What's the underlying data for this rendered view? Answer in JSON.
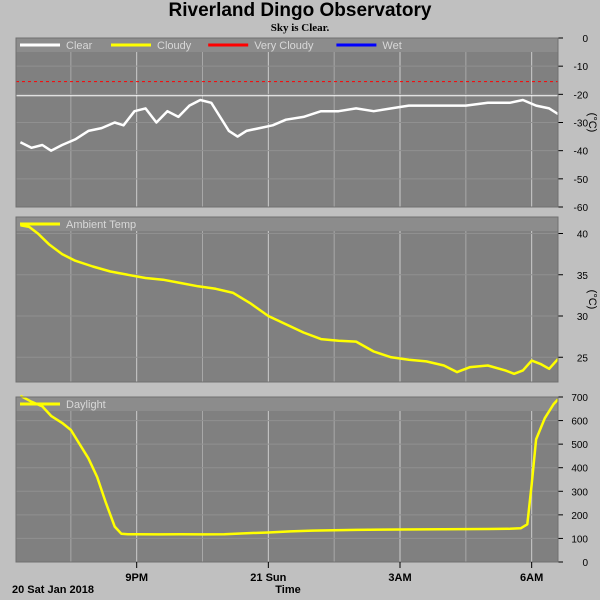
{
  "title": "Riverland Dingo Observatory",
  "subtitle": "Sky is Clear.",
  "colors": {
    "plot_bg": "#808080",
    "page_bg": "#c0c0c0",
    "grid": "#ffffff",
    "clear": "#ffffff",
    "cloudy": "#ffff00",
    "very_cloudy": "#ff0000",
    "wet": "#0000ff",
    "temp": "#ffff00",
    "daylight": "#ffff00"
  },
  "xaxis": {
    "title": "Time",
    "start_label": "20 Sat Jan 2018",
    "range_hours": [
      18.25,
      30.6
    ],
    "ticks": [
      {
        "hour": 21,
        "label": "9PM"
      },
      {
        "hour": 24,
        "label": "21 Sun"
      },
      {
        "hour": 27,
        "label": "3AM"
      },
      {
        "hour": 30,
        "label": "6AM"
      }
    ],
    "minor_grid_hours": [
      19.5,
      22.5,
      25.5,
      28.5
    ]
  },
  "chart_data": [
    {
      "type": "line",
      "title": "",
      "ylabel": "(°C)",
      "ylim": [
        -60,
        0
      ],
      "yticks": [
        0,
        -10,
        -20,
        -30,
        -40,
        -50,
        -60
      ],
      "legend": [
        {
          "name": "Clear",
          "color": "#ffffff"
        },
        {
          "name": "Cloudy",
          "color": "#ffff00"
        },
        {
          "name": "Very Cloudy",
          "color": "#ff0000"
        },
        {
          "name": "Wet",
          "color": "#0000ff"
        }
      ],
      "thresholds": [
        {
          "value": -15.5,
          "color": "#ff0000",
          "style": "dashed"
        },
        {
          "value": -20.5,
          "color": "#ffffff",
          "style": "solid"
        }
      ],
      "series": [
        {
          "name": "Clear",
          "color": "#ffffff",
          "x": [
            18.35,
            18.6,
            18.85,
            19.05,
            19.3,
            19.6,
            19.9,
            20.2,
            20.5,
            20.7,
            20.95,
            21.2,
            21.45,
            21.7,
            21.95,
            22.2,
            22.45,
            22.7,
            22.9,
            23.1,
            23.3,
            23.5,
            23.8,
            24.1,
            24.4,
            24.8,
            25.2,
            25.6,
            26.0,
            26.4,
            26.8,
            27.2,
            27.6,
            28.0,
            28.5,
            29.0,
            29.5,
            29.8,
            30.1,
            30.4,
            30.6
          ],
          "y": [
            -37,
            -39,
            -38,
            -40,
            -38,
            -36,
            -33,
            -32,
            -30,
            -31,
            -26,
            -25,
            -30,
            -26,
            -28,
            -24,
            -22,
            -23,
            -28,
            -33,
            -35,
            -33,
            -32,
            -31,
            -29,
            -28,
            -26,
            -26,
            -25,
            -26,
            -25,
            -24,
            -24,
            -24,
            -24,
            -23,
            -23,
            -22,
            -24,
            -25,
            -27
          ]
        }
      ]
    },
    {
      "type": "line",
      "title": "",
      "ylabel": "(°C)",
      "ylim": [
        22,
        42
      ],
      "yticks": [
        40,
        35,
        30,
        25
      ],
      "legend": [
        {
          "name": "Ambient Temp",
          "color": "#ffff00"
        }
      ],
      "series": [
        {
          "name": "Ambient Temp",
          "color": "#ffff00",
          "x": [
            18.35,
            18.55,
            18.75,
            19.0,
            19.3,
            19.6,
            20.0,
            20.4,
            20.8,
            21.2,
            21.6,
            22.0,
            22.4,
            22.8,
            23.2,
            23.6,
            24.0,
            24.4,
            24.8,
            25.2,
            25.6,
            26.0,
            26.4,
            26.8,
            27.2,
            27.6,
            28.0,
            28.3,
            28.6,
            29.0,
            29.4,
            29.6,
            29.8,
            30.0,
            30.2,
            30.4,
            30.6
          ],
          "y": [
            41,
            40.8,
            40,
            38.7,
            37.5,
            36.7,
            36.0,
            35.4,
            35.0,
            34.6,
            34.4,
            34.0,
            33.6,
            33.3,
            32.8,
            31.5,
            30.0,
            29.0,
            28.0,
            27.2,
            27.0,
            26.9,
            25.7,
            25.0,
            24.7,
            24.5,
            24.0,
            23.2,
            23.8,
            24.0,
            23.4,
            23.0,
            23.4,
            24.6,
            24.2,
            23.6,
            24.8
          ]
        }
      ]
    },
    {
      "type": "line",
      "title": "",
      "ylabel": "",
      "ylim": [
        0,
        700
      ],
      "yticks": [
        700,
        600,
        500,
        400,
        300,
        200,
        100,
        0
      ],
      "legend": [
        {
          "name": "Daylight",
          "color": "#ffff00"
        }
      ],
      "series": [
        {
          "name": "Daylight",
          "color": "#ffff00",
          "x": [
            18.35,
            18.6,
            18.85,
            19.05,
            19.3,
            19.5,
            19.7,
            19.9,
            20.1,
            20.3,
            20.5,
            20.65,
            20.8,
            21.0,
            21.5,
            22.0,
            22.5,
            23.0,
            23.5,
            24.0,
            24.5,
            25.0,
            25.5,
            26.0,
            27.0,
            28.0,
            29.0,
            29.5,
            29.75,
            29.9,
            30.0,
            30.1,
            30.3,
            30.5,
            30.6
          ],
          "y": [
            705,
            680,
            660,
            620,
            590,
            560,
            500,
            440,
            360,
            250,
            150,
            120,
            118,
            118,
            117,
            118,
            117,
            118,
            122,
            125,
            130,
            133,
            135,
            136,
            138,
            139,
            140,
            141,
            143,
            160,
            330,
            520,
            610,
            670,
            690
          ]
        }
      ]
    }
  ]
}
